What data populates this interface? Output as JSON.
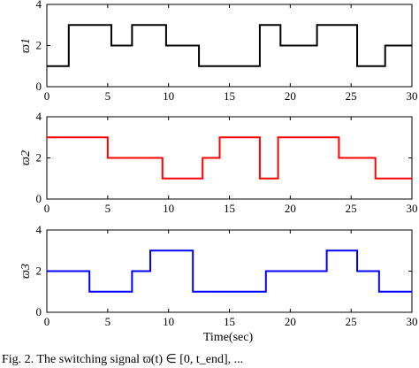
{
  "chart_data": [
    {
      "type": "line",
      "step": true,
      "ylabel": "ϖ1",
      "color": "#000000",
      "xlim": [
        0,
        30
      ],
      "ylim": [
        0,
        4
      ],
      "xticks": [
        0,
        5,
        10,
        15,
        20,
        25,
        30
      ],
      "yticks": [
        0,
        2,
        4
      ],
      "x": [
        0,
        1.8,
        5.3,
        7,
        9.8,
        12.5,
        17.5,
        19.2,
        22.2,
        25.5,
        27.8,
        30
      ],
      "y": [
        1,
        3,
        2,
        3,
        2,
        1,
        3,
        2,
        3,
        1,
        2,
        2
      ]
    },
    {
      "type": "line",
      "step": true,
      "ylabel": "ϖ2",
      "color": "#ff0000",
      "xlim": [
        0,
        30
      ],
      "ylim": [
        0,
        4
      ],
      "xticks": [
        0,
        5,
        10,
        15,
        20,
        25,
        30
      ],
      "yticks": [
        0,
        2,
        4
      ],
      "x": [
        0,
        5,
        9.5,
        12.8,
        14.2,
        17.5,
        19,
        24,
        27,
        30
      ],
      "y": [
        3,
        2,
        1,
        2,
        3,
        1,
        3,
        2,
        1,
        1
      ]
    },
    {
      "type": "line",
      "step": true,
      "ylabel": "ϖ3",
      "color": "#0000ff",
      "xlim": [
        0,
        30
      ],
      "ylim": [
        0,
        4
      ],
      "xticks": [
        0,
        5,
        10,
        15,
        20,
        25,
        30
      ],
      "yticks": [
        0,
        2,
        4
      ],
      "xlabel": "Time(sec)",
      "x": [
        0,
        3.5,
        7,
        8.5,
        12,
        18,
        23,
        25.5,
        27.3,
        30
      ],
      "y": [
        2,
        1,
        2,
        3,
        1,
        2,
        3,
        2,
        1,
        1
      ]
    }
  ],
  "caption": "Fig. 2. The switching signal ϖ(t) ∈ [0, t_end], ..."
}
